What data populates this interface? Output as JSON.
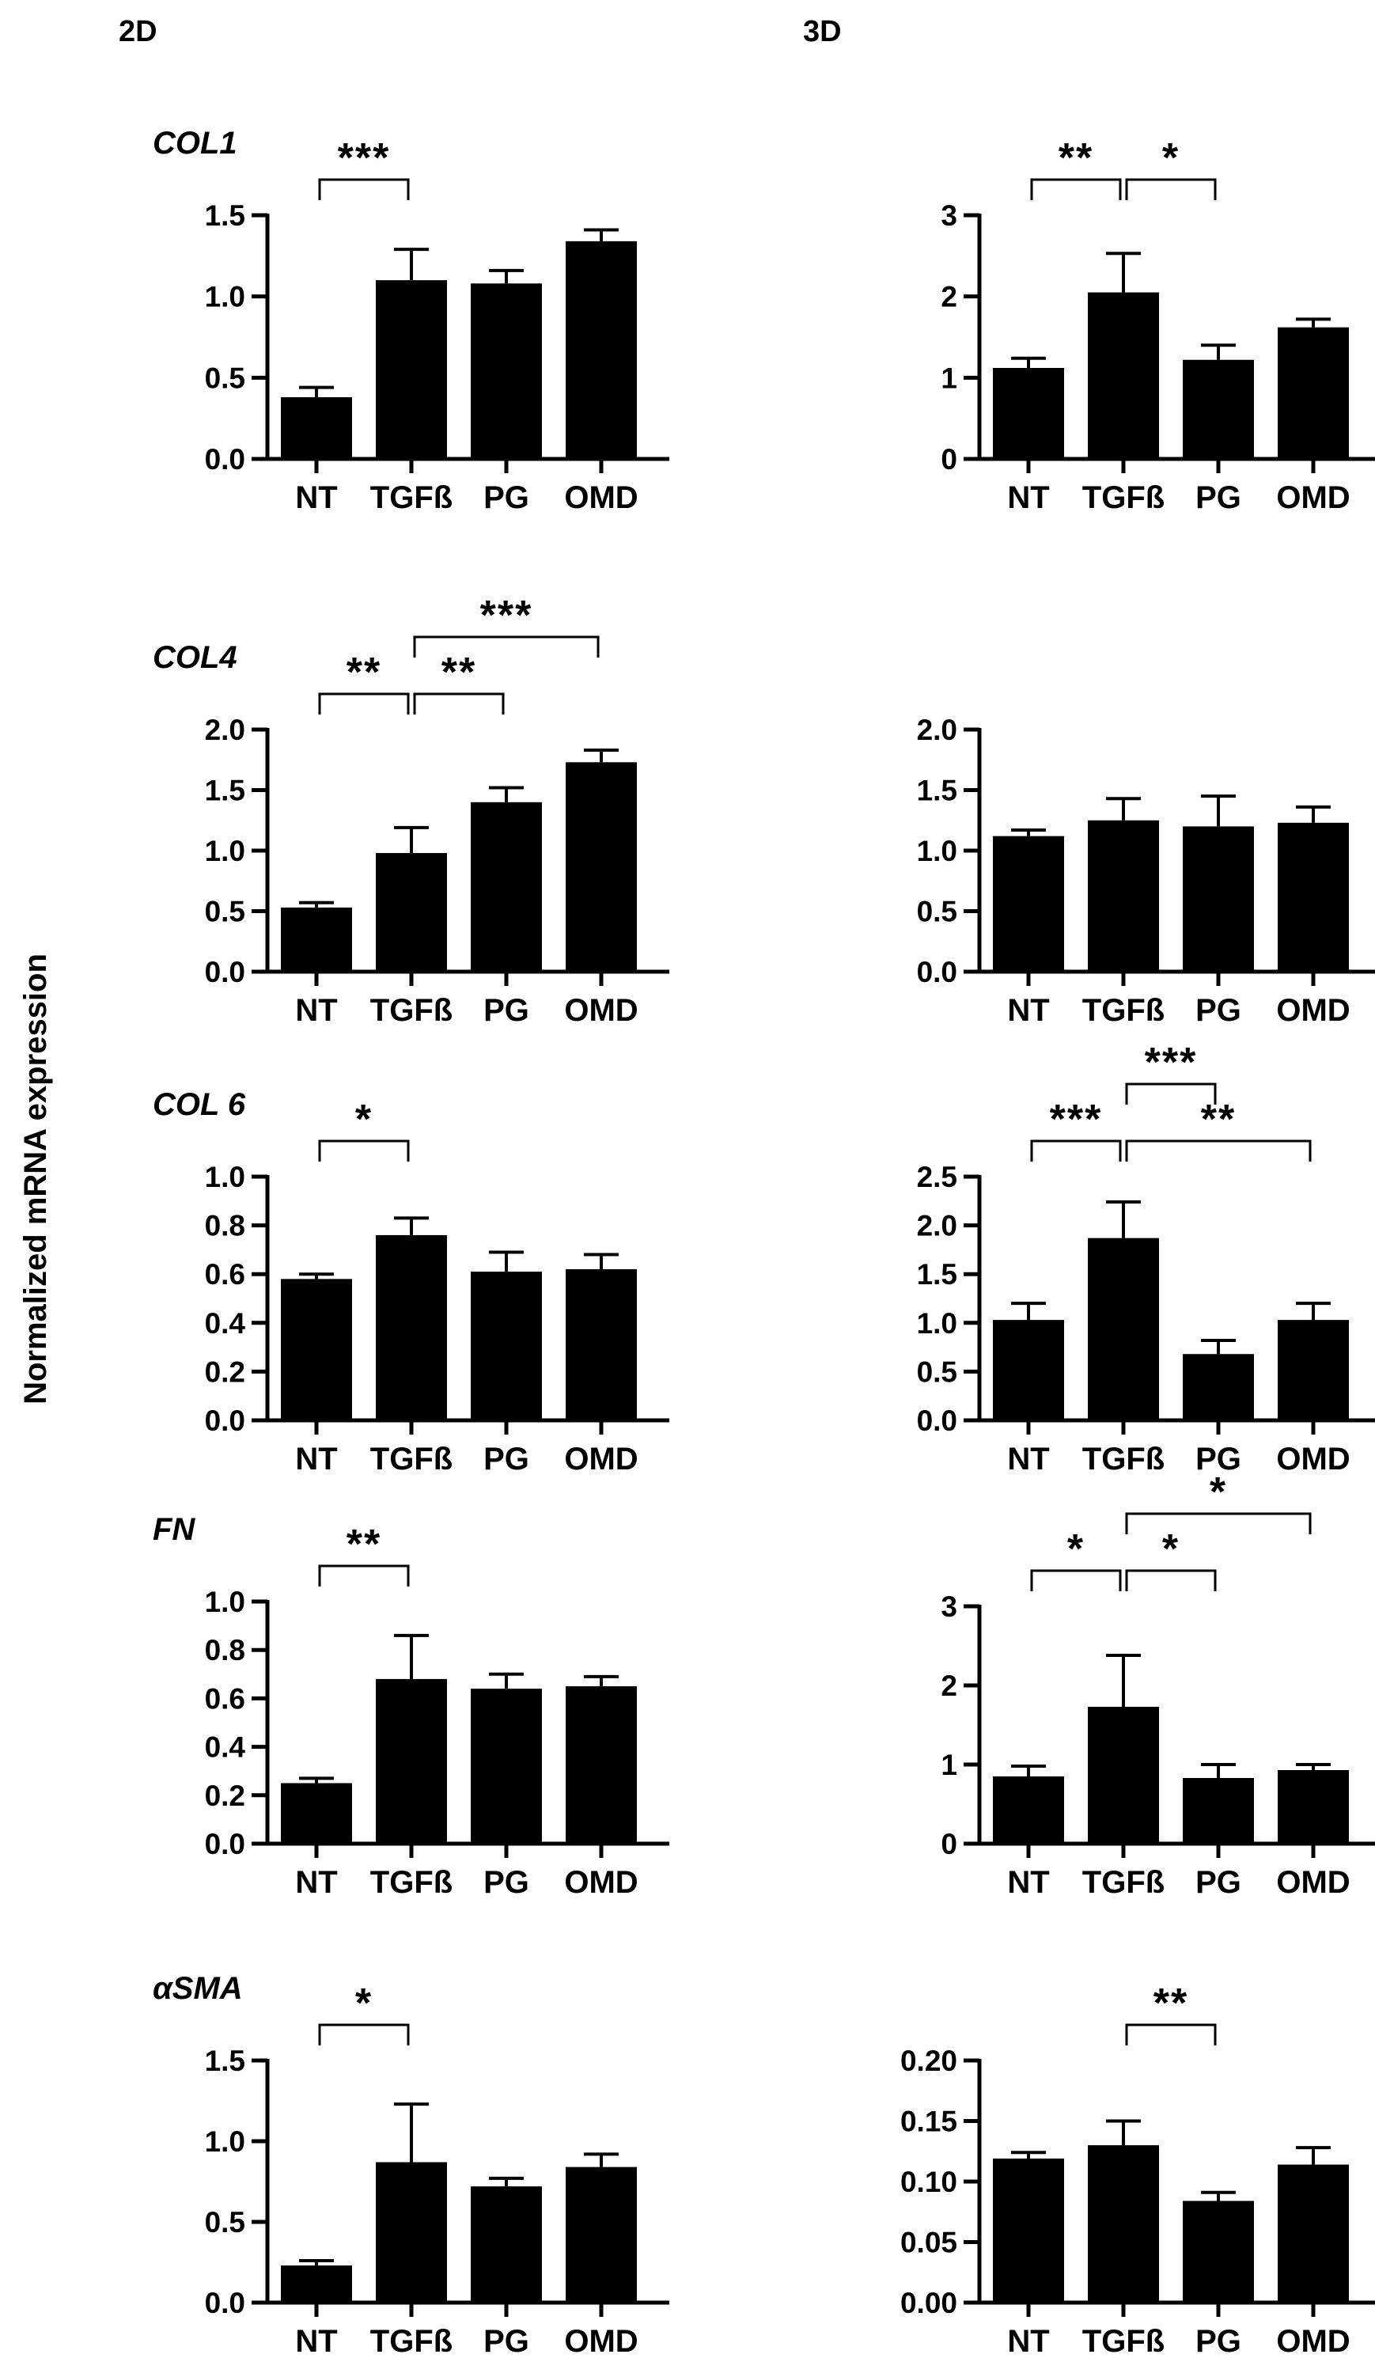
{
  "columns": [
    "2D",
    "3D"
  ],
  "y_axis_label": "Normalized mRNA expression",
  "chart_data": [
    {
      "type": "bar",
      "panel": "COL1 2D",
      "gene": "COL1",
      "col": "2D",
      "categories": [
        "NT",
        "TGFß",
        "PG",
        "OMD"
      ],
      "values": [
        0.38,
        1.1,
        1.08,
        1.34
      ],
      "errors": [
        0.06,
        0.19,
        0.08,
        0.07
      ],
      "ylim": [
        0,
        1.5
      ],
      "yticks": [
        "0.0",
        "0.5",
        "1.0",
        "1.5"
      ],
      "significance": [
        {
          "from": 0,
          "to": 1,
          "label": "***"
        }
      ]
    },
    {
      "type": "bar",
      "panel": "COL1 3D",
      "gene": "",
      "col": "3D",
      "categories": [
        "NT",
        "TGFß",
        "PG",
        "OMD"
      ],
      "values": [
        1.12,
        2.05,
        1.22,
        1.62
      ],
      "errors": [
        0.12,
        0.48,
        0.18,
        0.1
      ],
      "ylim": [
        0,
        3
      ],
      "yticks": [
        "0",
        "1",
        "2",
        "3"
      ],
      "significance": [
        {
          "from": 0,
          "to": 1,
          "label": "**"
        },
        {
          "from": 1,
          "to": 2,
          "label": "*"
        }
      ]
    },
    {
      "type": "bar",
      "panel": "COL4 2D",
      "gene": "COL4",
      "col": "2D",
      "categories": [
        "NT",
        "TGFß",
        "PG",
        "OMD"
      ],
      "values": [
        0.53,
        0.98,
        1.4,
        1.73
      ],
      "errors": [
        0.04,
        0.21,
        0.12,
        0.1
      ],
      "ylim": [
        0,
        2.0
      ],
      "yticks": [
        "0.0",
        "0.5",
        "1.0",
        "1.5",
        "2.0"
      ],
      "significance": [
        {
          "from": 0,
          "to": 1,
          "label": "**"
        },
        {
          "from": 1,
          "to": 2,
          "label": "**"
        },
        {
          "from": 1,
          "to": 3,
          "label": "***",
          "level": 2
        }
      ]
    },
    {
      "type": "bar",
      "panel": "COL4 3D",
      "gene": "",
      "col": "3D",
      "categories": [
        "NT",
        "TGFß",
        "PG",
        "OMD"
      ],
      "values": [
        1.12,
        1.25,
        1.2,
        1.23
      ],
      "errors": [
        0.05,
        0.18,
        0.25,
        0.13
      ],
      "ylim": [
        0,
        2.0
      ],
      "yticks": [
        "0.0",
        "0.5",
        "1.0",
        "1.5",
        "2.0"
      ],
      "significance": []
    },
    {
      "type": "bar",
      "panel": "COL 6 2D",
      "gene": "COL 6",
      "col": "2D",
      "categories": [
        "NT",
        "TGFß",
        "PG",
        "OMD"
      ],
      "values": [
        0.58,
        0.76,
        0.61,
        0.62
      ],
      "errors": [
        0.02,
        0.07,
        0.08,
        0.06
      ],
      "ylim": [
        0,
        1.0
      ],
      "yticks": [
        "0.0",
        "0.2",
        "0.4",
        "0.6",
        "0.8",
        "1.0"
      ],
      "significance": [
        {
          "from": 0,
          "to": 1,
          "label": "*"
        }
      ]
    },
    {
      "type": "bar",
      "panel": "COL 6 3D",
      "gene": "",
      "col": "3D",
      "categories": [
        "NT",
        "TGFß",
        "PG",
        "OMD"
      ],
      "values": [
        1.03,
        1.87,
        0.68,
        1.03
      ],
      "errors": [
        0.17,
        0.37,
        0.14,
        0.17
      ],
      "ylim": [
        0,
        2.5
      ],
      "yticks": [
        "0.0",
        "0.5",
        "1.0",
        "1.5",
        "2.0",
        "2.5"
      ],
      "significance": [
        {
          "from": 0,
          "to": 1,
          "label": "***"
        },
        {
          "from": 1,
          "to": 3,
          "label": "**"
        },
        {
          "from": 1,
          "to": 2,
          "label": "***",
          "level": 2
        }
      ]
    },
    {
      "type": "bar",
      "panel": "FN 2D",
      "gene": "FN",
      "col": "2D",
      "categories": [
        "NT",
        "TGFß",
        "PG",
        "OMD"
      ],
      "values": [
        0.25,
        0.68,
        0.64,
        0.65
      ],
      "errors": [
        0.02,
        0.18,
        0.06,
        0.04
      ],
      "ylim": [
        0,
        1.0
      ],
      "yticks": [
        "0.0",
        "0.2",
        "0.4",
        "0.6",
        "0.8",
        "1.0"
      ],
      "significance": [
        {
          "from": 0,
          "to": 1,
          "label": "**"
        }
      ]
    },
    {
      "type": "bar",
      "panel": "FN 3D",
      "gene": "",
      "col": "3D",
      "categories": [
        "NT",
        "TGFß",
        "PG",
        "OMD"
      ],
      "values": [
        0.85,
        1.73,
        0.83,
        0.93
      ],
      "errors": [
        0.13,
        0.65,
        0.17,
        0.07
      ],
      "ylim": [
        0,
        3
      ],
      "yticks": [
        "0",
        "1",
        "2",
        "3"
      ],
      "significance": [
        {
          "from": 0,
          "to": 1,
          "label": "*"
        },
        {
          "from": 1,
          "to": 2,
          "label": "*"
        },
        {
          "from": 1,
          "to": 3,
          "label": "*",
          "level": 2
        }
      ]
    },
    {
      "type": "bar",
      "panel": "aSMA 2D",
      "gene": "αSMA",
      "col": "2D",
      "categories": [
        "NT",
        "TGFß",
        "PG",
        "OMD"
      ],
      "values": [
        0.23,
        0.87,
        0.72,
        0.84
      ],
      "errors": [
        0.03,
        0.36,
        0.05,
        0.08
      ],
      "ylim": [
        0,
        1.5
      ],
      "yticks": [
        "0.0",
        "0.5",
        "1.0",
        "1.5"
      ],
      "significance": [
        {
          "from": 0,
          "to": 1,
          "label": "*"
        }
      ]
    },
    {
      "type": "bar",
      "panel": "aSMA 3D",
      "gene": "",
      "col": "3D",
      "categories": [
        "NT",
        "TGFß",
        "PG",
        "OMD"
      ],
      "values": [
        0.119,
        0.13,
        0.084,
        0.114
      ],
      "errors": [
        0.005,
        0.02,
        0.007,
        0.014
      ],
      "ylim": [
        0,
        0.2
      ],
      "yticks": [
        "0.00",
        "0.05",
        "0.10",
        "0.15",
        "0.20"
      ],
      "significance": [
        {
          "from": 1,
          "to": 2,
          "label": "**"
        }
      ]
    }
  ]
}
